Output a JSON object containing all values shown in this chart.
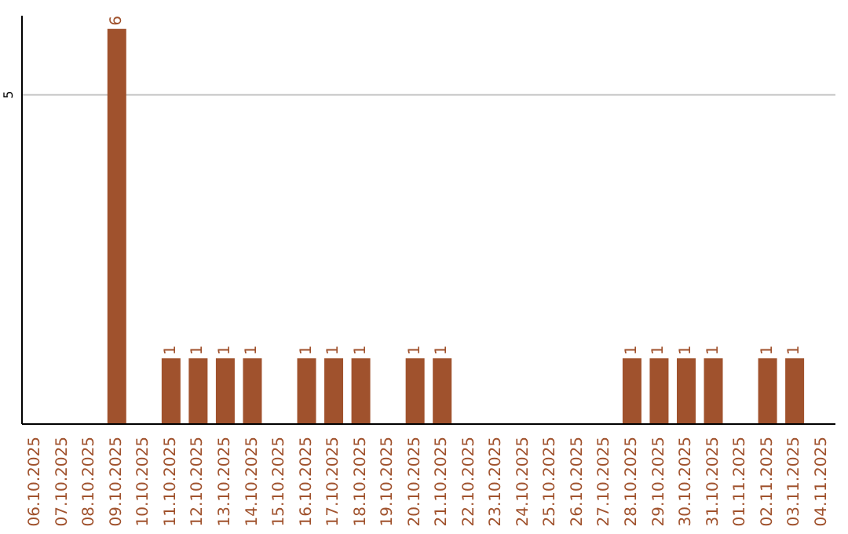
{
  "chart_data": {
    "type": "bar",
    "categories": [
      "06.10.2025",
      "07.10.2025",
      "08.10.2025",
      "09.10.2025",
      "10.10.2025",
      "11.10.2025",
      "12.10.2025",
      "13.10.2025",
      "14.10.2025",
      "15.10.2025",
      "16.10.2025",
      "17.10.2025",
      "18.10.2025",
      "19.10.2025",
      "20.10.2025",
      "21.10.2025",
      "22.10.2025",
      "23.10.2025",
      "24.10.2025",
      "25.10.2025",
      "26.10.2025",
      "27.10.2025",
      "28.10.2025",
      "29.10.2025",
      "30.10.2025",
      "31.10.2025",
      "01.11.2025",
      "02.11.2025",
      "03.11.2025",
      "04.11.2025"
    ],
    "values": [
      0,
      0,
      0,
      6,
      0,
      1,
      1,
      1,
      1,
      0,
      1,
      1,
      1,
      0,
      1,
      1,
      0,
      0,
      0,
      0,
      0,
      0,
      1,
      1,
      1,
      1,
      0,
      1,
      1,
      0
    ],
    "value_labels": [
      null,
      null,
      null,
      "6",
      null,
      "1",
      "1",
      "1",
      "1",
      null,
      "1",
      "1",
      "1",
      null,
      "1",
      "1",
      null,
      null,
      null,
      null,
      null,
      null,
      "1",
      "1",
      "1",
      "1",
      null,
      "1",
      "1",
      null
    ],
    "color": "#a0522d",
    "ylim": [
      0,
      6.2
    ],
    "yticks": [
      5
    ],
    "grid": "y"
  }
}
